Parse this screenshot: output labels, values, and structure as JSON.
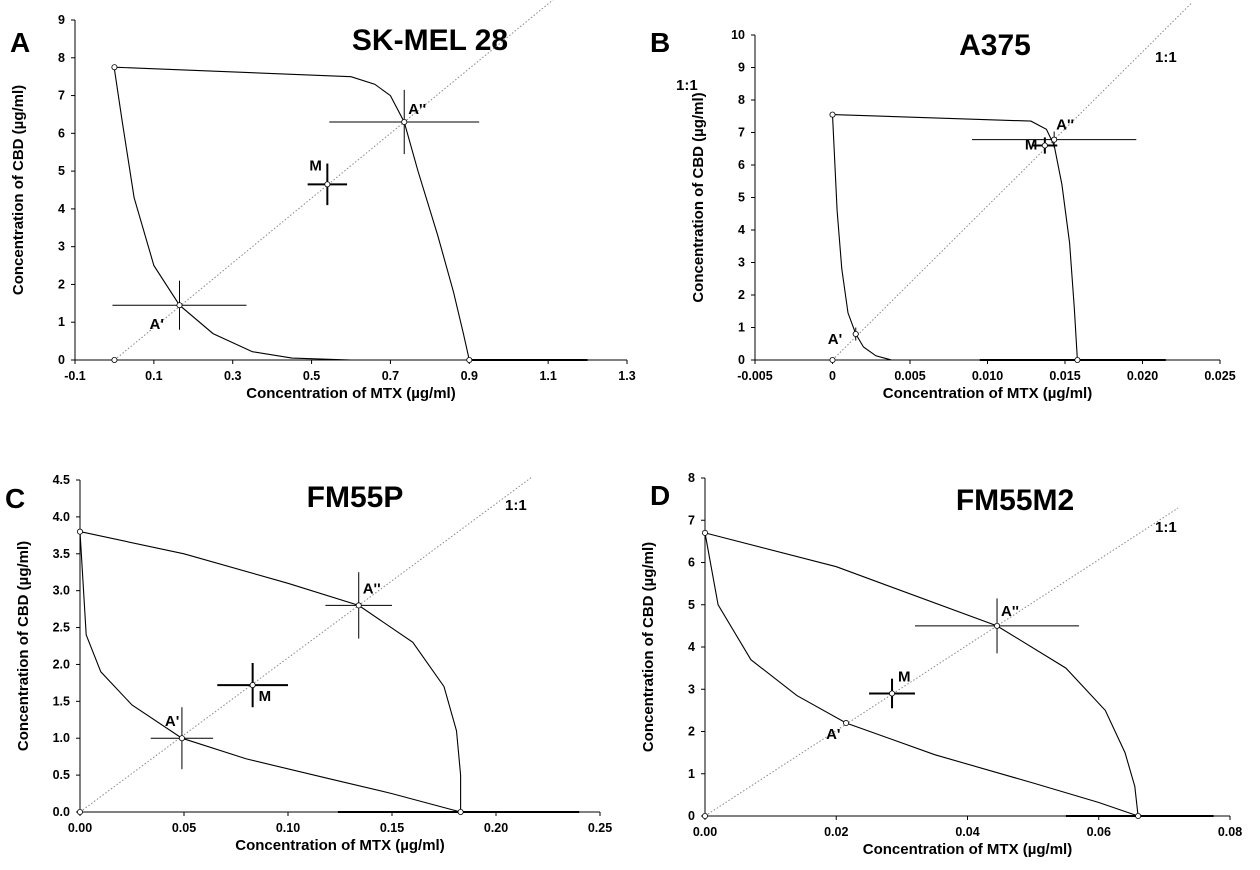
{
  "figure": {
    "panel_letters": [
      "A",
      "B",
      "C",
      "D"
    ]
  },
  "chart_data": [
    {
      "type": "line",
      "panel": "A",
      "title": "SK-MEL 28",
      "xlabel": "Concentration of MTX (µg/ml)",
      "ylabel": "Concentration of CBD (µg/ml)",
      "xlim": [
        -0.1,
        1.3
      ],
      "ylim": [
        0,
        9
      ],
      "x_ticks": [
        "-0.1",
        "0.1",
        "0.3",
        "0.5",
        "0.7",
        "0.9",
        "1.1",
        "1.3"
      ],
      "y_ticks": [
        "0",
        "1",
        "2",
        "3",
        "4",
        "5",
        "6",
        "7",
        "8",
        "9"
      ],
      "line_label": "1:1",
      "curves": [
        {
          "name": "inner isobole",
          "points": [
            [
              0,
              7.7
            ],
            [
              0.02,
              6.3
            ],
            [
              0.05,
              4.3
            ],
            [
              0.1,
              2.5
            ],
            [
              0.165,
              1.45
            ],
            [
              0.25,
              0.7
            ],
            [
              0.35,
              0.22
            ],
            [
              0.45,
              0.05
            ],
            [
              0.6,
              0.0
            ],
            [
              0.9,
              0.0
            ]
          ]
        },
        {
          "name": "outer isobole",
          "points": [
            [
              0,
              7.75
            ],
            [
              0.6,
              7.5
            ],
            [
              0.66,
              7.3
            ],
            [
              0.7,
              7.0
            ],
            [
              0.735,
              6.3
            ],
            [
              0.77,
              5.0
            ],
            [
              0.82,
              3.3
            ],
            [
              0.86,
              1.8
            ],
            [
              0.885,
              0.7
            ],
            [
              0.9,
              0.0
            ]
          ]
        }
      ],
      "points": [
        {
          "label": "A'",
          "x": 0.165,
          "y": 1.45,
          "xerr": 0.17,
          "yerr": 0.65
        },
        {
          "label": "M",
          "x": 0.54,
          "y": 4.65,
          "xerr": 0.05,
          "yerr": 0.55
        },
        {
          "label": "A''",
          "x": 0.735,
          "y": 6.3,
          "xerr": 0.19,
          "yerr": 0.85
        }
      ],
      "endpoints": [
        [
          0,
          0
        ],
        [
          0.9,
          0
        ],
        [
          0,
          7.75
        ]
      ],
      "x_error_bar": {
        "y": 0,
        "from": 0.9,
        "to": 1.2
      }
    },
    {
      "type": "line",
      "panel": "B",
      "title": "A375",
      "xlabel": "Concentration of MTX (µg/ml)",
      "ylabel": "Concentration of CBD (µg/ml)",
      "xlim": [
        -0.005,
        0.025
      ],
      "ylim": [
        0,
        10
      ],
      "x_ticks": [
        "-0.005",
        "0",
        "0.005",
        "0.010",
        "0.015",
        "0.020",
        "0.025"
      ],
      "y_ticks": [
        "0",
        "1",
        "2",
        "3",
        "4",
        "5",
        "6",
        "7",
        "8",
        "9",
        "10"
      ],
      "line_label": "1:1",
      "curves": [
        {
          "name": "inner isobole",
          "points": [
            [
              0,
              7.55
            ],
            [
              0.0003,
              4.6
            ],
            [
              0.0006,
              2.8
            ],
            [
              0.001,
              1.45
            ],
            [
              0.0015,
              0.8
            ],
            [
              0.002,
              0.4
            ],
            [
              0.0028,
              0.13
            ],
            [
              0.0038,
              0.0
            ],
            [
              0.0158,
              0.0
            ]
          ]
        },
        {
          "name": "outer isobole",
          "points": [
            [
              0,
              7.55
            ],
            [
              0.0128,
              7.35
            ],
            [
              0.0138,
              7.1
            ],
            [
              0.0143,
              6.6
            ],
            [
              0.0148,
              5.4
            ],
            [
              0.0153,
              3.6
            ],
            [
              0.0156,
              1.6
            ],
            [
              0.0158,
              0.0
            ]
          ]
        }
      ],
      "points": [
        {
          "label": "A'",
          "x": 0.0015,
          "y": 0.8,
          "xerr": 0.0002,
          "yerr": 0.2
        },
        {
          "label": "M",
          "x": 0.0137,
          "y": 6.6,
          "xerr": 0.0008,
          "yerr": 0.25
        },
        {
          "label": "A''",
          "x": 0.0143,
          "y": 6.78,
          "xerr": 0.0053,
          "yerr": 0.25
        }
      ],
      "endpoints": [
        [
          0,
          0
        ],
        [
          0.0158,
          0
        ],
        [
          0,
          7.55
        ]
      ],
      "x_error_bar": {
        "y": 0,
        "from": 0.0095,
        "to": 0.0215
      }
    },
    {
      "type": "line",
      "panel": "C",
      "title": "FM55P",
      "xlabel": "Concentration of MTX (µg/ml)",
      "ylabel": "Concentration of CBD (µg/ml)",
      "xlim": [
        0,
        0.25
      ],
      "ylim": [
        0,
        4.5
      ],
      "x_ticks": [
        "0.00",
        "0.05",
        "0.10",
        "0.15",
        "0.20",
        "0.25"
      ],
      "y_ticks": [
        "0.0",
        "0.5",
        "1.0",
        "1.5",
        "2.0",
        "2.5",
        "3.0",
        "3.5",
        "4.0",
        "4.5"
      ],
      "line_label": "1:1",
      "curves": [
        {
          "name": "inner isobole",
          "points": [
            [
              0,
              3.8
            ],
            [
              0.003,
              2.4
            ],
            [
              0.01,
              1.9
            ],
            [
              0.025,
              1.45
            ],
            [
              0.049,
              1.0
            ],
            [
              0.08,
              0.72
            ],
            [
              0.12,
              0.45
            ],
            [
              0.15,
              0.25
            ],
            [
              0.183,
              0.0
            ]
          ]
        },
        {
          "name": "outer isobole",
          "points": [
            [
              0,
              3.8
            ],
            [
              0.05,
              3.5
            ],
            [
              0.1,
              3.1
            ],
            [
              0.134,
              2.8
            ],
            [
              0.16,
              2.3
            ],
            [
              0.175,
              1.7
            ],
            [
              0.181,
              1.1
            ],
            [
              0.183,
              0.5
            ],
            [
              0.183,
              0.0
            ]
          ]
        }
      ],
      "points": [
        {
          "label": "A'",
          "x": 0.049,
          "y": 1.0,
          "xerr": 0.015,
          "yerr": 0.42
        },
        {
          "label": "M",
          "x": 0.083,
          "y": 1.72,
          "xerr": 0.017,
          "yerr": 0.3
        },
        {
          "label": "A''",
          "x": 0.134,
          "y": 2.8,
          "xerr": 0.016,
          "yerr": 0.45
        }
      ],
      "endpoints": [
        [
          0,
          0
        ],
        [
          0.183,
          0
        ],
        [
          0,
          3.8
        ]
      ],
      "x_error_bar": {
        "y": 0,
        "from": 0.124,
        "to": 0.24
      }
    },
    {
      "type": "line",
      "panel": "D",
      "title": "FM55M2",
      "xlabel": "Concentration of MTX (µg/ml)",
      "ylabel": "Concentration of CBD (µg/ml)",
      "xlim": [
        0,
        0.08
      ],
      "ylim": [
        0,
        8
      ],
      "x_ticks": [
        "0.00",
        "0.02",
        "0.04",
        "0.06",
        "0.08"
      ],
      "y_ticks": [
        "0",
        "1",
        "2",
        "3",
        "4",
        "5",
        "6",
        "7",
        "8"
      ],
      "line_label": "1:1",
      "curves": [
        {
          "name": "inner isobole",
          "points": [
            [
              0,
              6.7
            ],
            [
              0.002,
              5.0
            ],
            [
              0.007,
              3.7
            ],
            [
              0.014,
              2.85
            ],
            [
              0.0215,
              2.2
            ],
            [
              0.035,
              1.45
            ],
            [
              0.05,
              0.78
            ],
            [
              0.06,
              0.32
            ],
            [
              0.066,
              0.0
            ]
          ]
        },
        {
          "name": "outer isobole",
          "points": [
            [
              0,
              6.7
            ],
            [
              0.02,
              5.9
            ],
            [
              0.0445,
              4.5
            ],
            [
              0.055,
              3.5
            ],
            [
              0.061,
              2.5
            ],
            [
              0.064,
              1.5
            ],
            [
              0.0655,
              0.7
            ],
            [
              0.066,
              0.0
            ]
          ]
        }
      ],
      "points": [
        {
          "label": "A'",
          "x": 0.0215,
          "y": 2.2,
          "xerr": 0.0,
          "yerr": 0.0
        },
        {
          "label": "M",
          "x": 0.0285,
          "y": 2.9,
          "xerr": 0.0035,
          "yerr": 0.35
        },
        {
          "label": "A''",
          "x": 0.0445,
          "y": 4.5,
          "xerr": 0.0125,
          "yerr": 0.65
        }
      ],
      "endpoints": [
        [
          0,
          0
        ],
        [
          0.066,
          0
        ],
        [
          0,
          6.7
        ]
      ],
      "x_error_bar": {
        "y": 0,
        "from": 0.055,
        "to": 0.0775
      }
    }
  ]
}
